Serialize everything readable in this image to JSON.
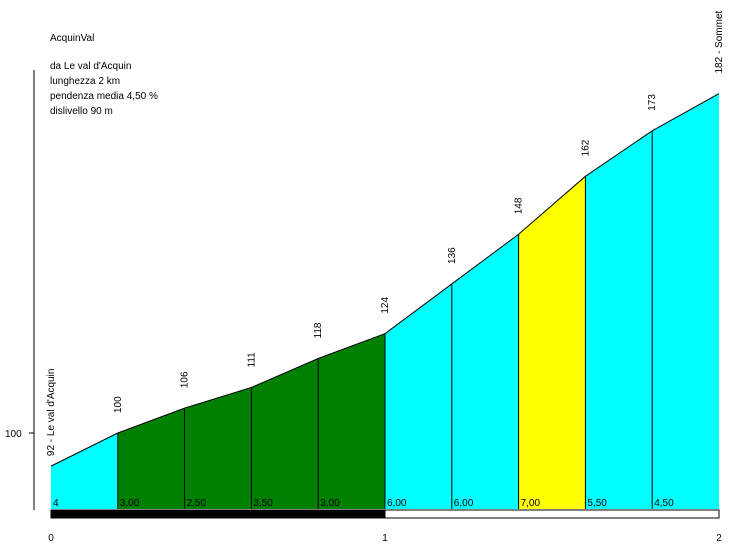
{
  "chart_data": {
    "type": "area",
    "title": "AcquinVal",
    "info_lines": [
      "da Le val d'Acquin",
      "lunghezza 2 km",
      "pendenza media 4,50 %",
      "dislivello 90 m"
    ],
    "xlabel": "",
    "ylabel": "",
    "x_ticks": [
      "0",
      "1",
      "2"
    ],
    "y_tick": {
      "value": 100,
      "label": "100"
    },
    "xlim": [
      0,
      2
    ],
    "ylim": [
      80,
      190
    ],
    "start_label": "92 - Le val d'Acquin",
    "end_label": "182 - Sommet",
    "points": [
      {
        "x": 0.0,
        "y": 92
      },
      {
        "x": 0.2,
        "y": 100
      },
      {
        "x": 0.4,
        "y": 106
      },
      {
        "x": 0.6,
        "y": 111
      },
      {
        "x": 0.8,
        "y": 118
      },
      {
        "x": 1.0,
        "y": 124
      },
      {
        "x": 1.2,
        "y": 136
      },
      {
        "x": 1.4,
        "y": 148
      },
      {
        "x": 1.6,
        "y": 162
      },
      {
        "x": 1.8,
        "y": 173
      },
      {
        "x": 2.0,
        "y": 182
      }
    ],
    "point_labels": [
      "100",
      "106",
      "111",
      "118",
      "124",
      "136",
      "148",
      "162",
      "173"
    ],
    "segments": [
      {
        "gradient": "4",
        "color": "#00ffff"
      },
      {
        "gradient": "3,00",
        "color": "#008000"
      },
      {
        "gradient": "2,50",
        "color": "#008000"
      },
      {
        "gradient": "3,50",
        "color": "#008000"
      },
      {
        "gradient": "3,00",
        "color": "#008000"
      },
      {
        "gradient": "6,00",
        "color": "#00ffff"
      },
      {
        "gradient": "6,00",
        "color": "#00ffff"
      },
      {
        "gradient": "7,00",
        "color": "#ffff00"
      },
      {
        "gradient": "5,50",
        "color": "#00ffff"
      },
      {
        "gradient": "4,50",
        "color": "#00ffff"
      }
    ],
    "km_bar_colors": [
      "#000000",
      "#ffffff"
    ]
  }
}
